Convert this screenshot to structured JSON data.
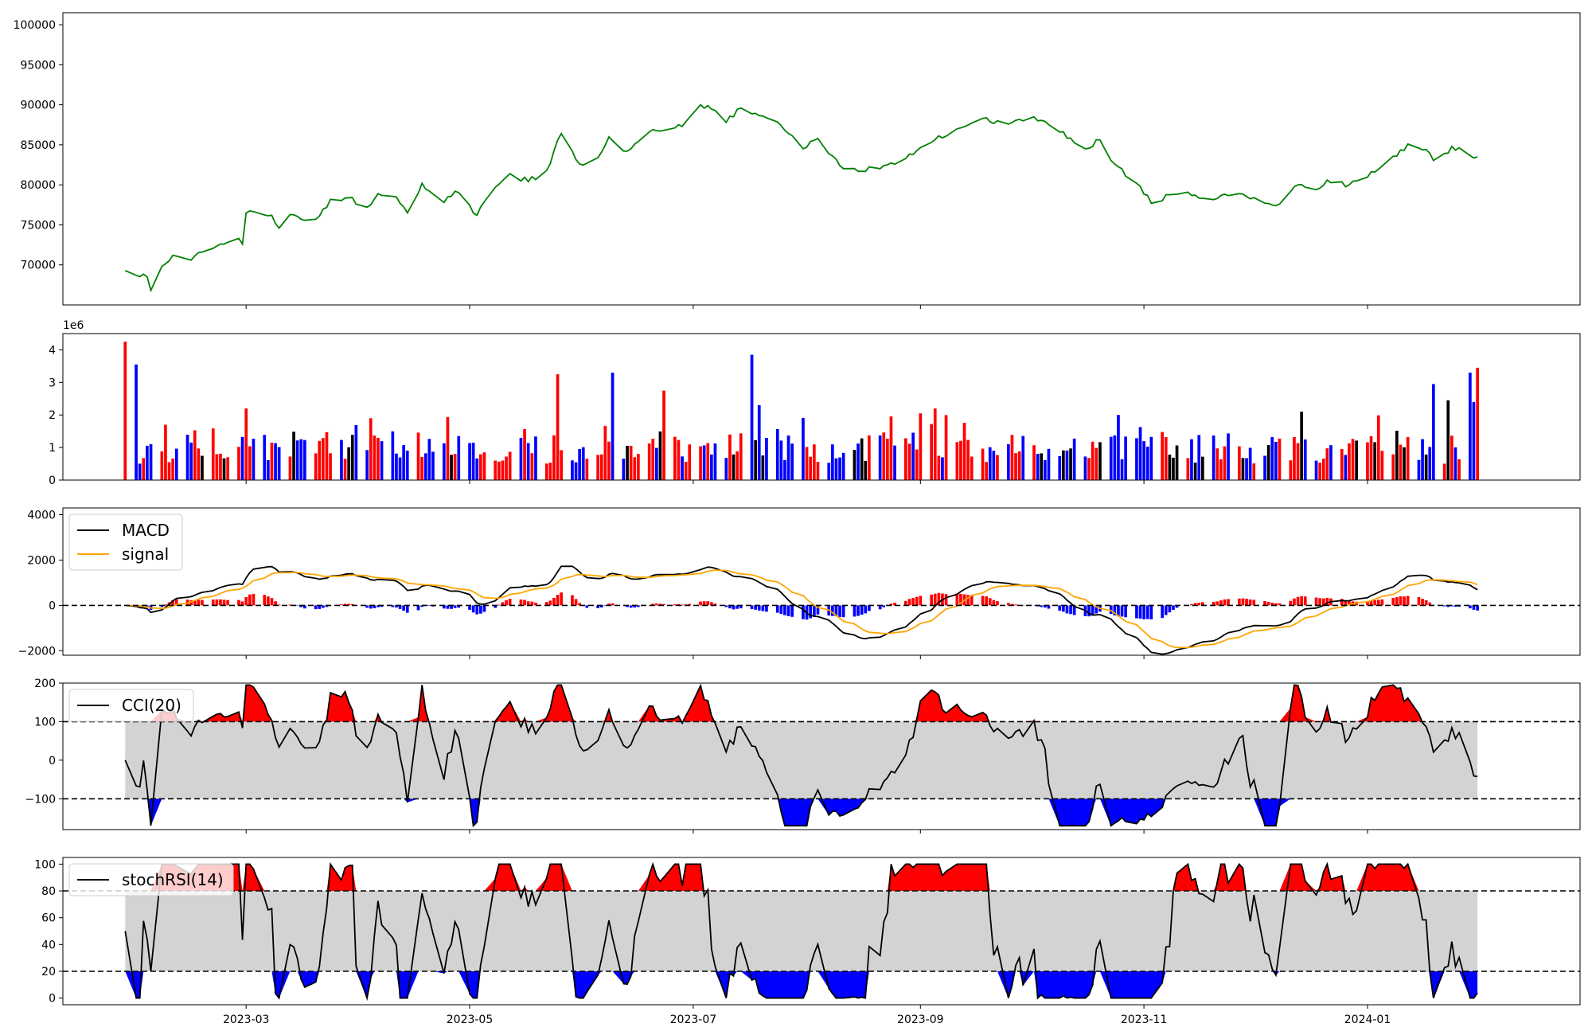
{
  "colors": {
    "price": "#008000",
    "up": "#ff0000",
    "down": "#0000ff",
    "neutral": "#000000",
    "macd": "#000000",
    "signal": "#ffa500",
    "band": "#d3d3d3",
    "hi": "#ff0000",
    "lo": "#0000ff",
    "line": "#000000"
  },
  "chart_data": [
    {
      "type": "line",
      "panel": "price",
      "x_start": "2023-01-27",
      "x_end": "2024-01-31",
      "x_ticks": [
        "2023-03",
        "2023-05",
        "2023-07",
        "2023-09",
        "2023-11",
        "2024-01"
      ],
      "x_tick_dates": [
        "2023-03-01",
        "2023-05-01",
        "2023-07-01",
        "2023-09-01",
        "2023-11-01",
        "2024-01-01"
      ],
      "xlim": [
        "2023-01-10",
        "2024-02-28"
      ],
      "ylim": [
        65000,
        101500
      ],
      "y_ticks": [
        70000,
        75000,
        80000,
        85000,
        90000,
        95000,
        100000
      ],
      "y_tick_labels": [
        "70000",
        "75000",
        "80000",
        "85000",
        "90000",
        "95000",
        "100000"
      ],
      "anchors": [
        [
          "2023-01-27",
          69300
        ],
        [
          "2023-01-30",
          68700
        ],
        [
          "2023-02-02",
          68500
        ],
        [
          "2023-02-03",
          66800
        ],
        [
          "2023-02-06",
          69800
        ],
        [
          "2023-02-09",
          71200
        ],
        [
          "2023-02-14",
          70600
        ],
        [
          "2023-02-17",
          71600
        ],
        [
          "2023-02-22",
          72600
        ],
        [
          "2023-02-27",
          73300
        ],
        [
          "2023-02-28",
          72600
        ],
        [
          "2023-03-01",
          76500
        ],
        [
          "2023-03-08",
          76200
        ],
        [
          "2023-03-10",
          74600
        ],
        [
          "2023-03-13",
          76300
        ],
        [
          "2023-03-16",
          75700
        ],
        [
          "2023-03-21",
          76100
        ],
        [
          "2023-03-24",
          78200
        ],
        [
          "2023-03-29",
          78400
        ],
        [
          "2023-04-03",
          77200
        ],
        [
          "2023-04-06",
          78900
        ],
        [
          "2023-04-11",
          78500
        ],
        [
          "2023-04-14",
          76500
        ],
        [
          "2023-04-18",
          80200
        ],
        [
          "2023-04-24",
          77800
        ],
        [
          "2023-04-27",
          79200
        ],
        [
          "2023-05-03",
          76200
        ],
        [
          "2023-05-08",
          79700
        ],
        [
          "2023-05-12",
          81400
        ],
        [
          "2023-05-17",
          80400
        ],
        [
          "2023-05-22",
          81800
        ],
        [
          "2023-05-26",
          86400
        ],
        [
          "2023-05-31",
          82600
        ],
        [
          "2023-06-05",
          83400
        ],
        [
          "2023-06-08",
          86000
        ],
        [
          "2023-06-13",
          84200
        ],
        [
          "2023-06-19",
          86600
        ],
        [
          "2023-06-23",
          86800
        ],
        [
          "2023-06-28",
          87300
        ],
        [
          "2023-07-03",
          90000
        ],
        [
          "2023-07-07",
          89300
        ],
        [
          "2023-07-10",
          87800
        ],
        [
          "2023-07-14",
          89600
        ],
        [
          "2023-07-20",
          88600
        ],
        [
          "2023-07-25",
          87400
        ],
        [
          "2023-07-31",
          84500
        ],
        [
          "2023-08-04",
          85800
        ],
        [
          "2023-08-10",
          82400
        ],
        [
          "2023-08-16",
          81700
        ],
        [
          "2023-08-22",
          82400
        ],
        [
          "2023-08-28",
          83300
        ],
        [
          "2023-09-04",
          85300
        ],
        [
          "2023-09-11",
          87000
        ],
        [
          "2023-09-18",
          88300
        ],
        [
          "2023-09-25",
          87600
        ],
        [
          "2023-10-02",
          88500
        ],
        [
          "2023-10-09",
          86600
        ],
        [
          "2023-10-16",
          84500
        ],
        [
          "2023-10-20",
          85600
        ],
        [
          "2023-10-24",
          82600
        ],
        [
          "2023-10-30",
          80200
        ],
        [
          "2023-11-03",
          77700
        ],
        [
          "2023-11-09",
          78800
        ],
        [
          "2023-11-15",
          78700
        ],
        [
          "2023-11-21",
          78300
        ],
        [
          "2023-11-27",
          78900
        ],
        [
          "2023-12-04",
          77700
        ],
        [
          "2023-12-08",
          77600
        ],
        [
          "2023-12-13",
          80000
        ],
        [
          "2023-12-18",
          79400
        ],
        [
          "2023-12-21",
          80600
        ],
        [
          "2023-12-27",
          80000
        ],
        [
          "2024-01-03",
          81600
        ],
        [
          "2024-01-09",
          83600
        ],
        [
          "2024-01-12",
          85100
        ],
        [
          "2024-01-17",
          84400
        ],
        [
          "2024-01-20",
          82500
        ],
        [
          "2024-01-24",
          84800
        ],
        [
          "2024-01-31",
          83500
        ]
      ]
    },
    {
      "type": "bar",
      "panel": "volume",
      "offset_label": "1e6",
      "ylim": [
        0,
        4.5
      ],
      "y_ticks": [
        0,
        1,
        2,
        3,
        4
      ],
      "y_tick_labels": [
        "0",
        "1",
        "2",
        "3",
        "4"
      ],
      "peaks": [
        [
          "2023-01-27",
          4.25
        ],
        [
          "2023-01-30",
          3.55
        ],
        [
          "2023-03-01",
          2.2
        ],
        [
          "2023-04-04",
          1.9
        ],
        [
          "2023-05-25",
          3.25
        ],
        [
          "2023-06-09",
          3.3
        ],
        [
          "2023-06-23",
          2.75
        ],
        [
          "2023-07-17",
          3.85
        ],
        [
          "2023-07-19",
          2.3
        ],
        [
          "2023-09-01",
          2.05
        ],
        [
          "2023-09-05",
          2.2
        ],
        [
          "2023-10-25",
          2.0
        ],
        [
          "2023-12-14",
          2.1
        ],
        [
          "2024-01-19",
          2.95
        ],
        [
          "2024-01-23",
          2.45
        ],
        [
          "2024-01-29",
          3.3
        ],
        [
          "2024-01-30",
          2.4
        ],
        [
          "2024-01-31",
          3.45
        ]
      ]
    },
    {
      "type": "line",
      "panel": "macd",
      "ylim": [
        -2200,
        4300
      ],
      "y_ticks": [
        -2000,
        0,
        2000,
        4000
      ],
      "y_tick_labels": [
        "−2000",
        "0",
        "2000",
        "4000"
      ],
      "ref_lines": [
        0
      ],
      "series": [
        {
          "name": "MACD",
          "role": "macd"
        },
        {
          "name": "signal",
          "role": "signal"
        }
      ],
      "legend": "upper-left"
    },
    {
      "type": "line",
      "panel": "cci",
      "ylim": [
        -180,
        200
      ],
      "y_ticks": [
        -100,
        0,
        100,
        200
      ],
      "y_tick_labels": [
        "−100",
        "0",
        "100",
        "200"
      ],
      "ref_lines": [
        -100,
        100
      ],
      "band": [
        -100,
        100
      ],
      "series": [
        {
          "name": "CCI(20)"
        }
      ],
      "legend": "upper-left"
    },
    {
      "type": "line",
      "panel": "stochrsi",
      "ylim": [
        -5,
        105
      ],
      "y_ticks": [
        0,
        20,
        40,
        60,
        80,
        100
      ],
      "y_tick_labels": [
        "0",
        "20",
        "40",
        "60",
        "80",
        "100"
      ],
      "ref_lines": [
        20,
        80
      ],
      "band": [
        20,
        80
      ],
      "series": [
        {
          "name": "stochRSI(14)"
        }
      ],
      "legend": "upper-left"
    }
  ]
}
